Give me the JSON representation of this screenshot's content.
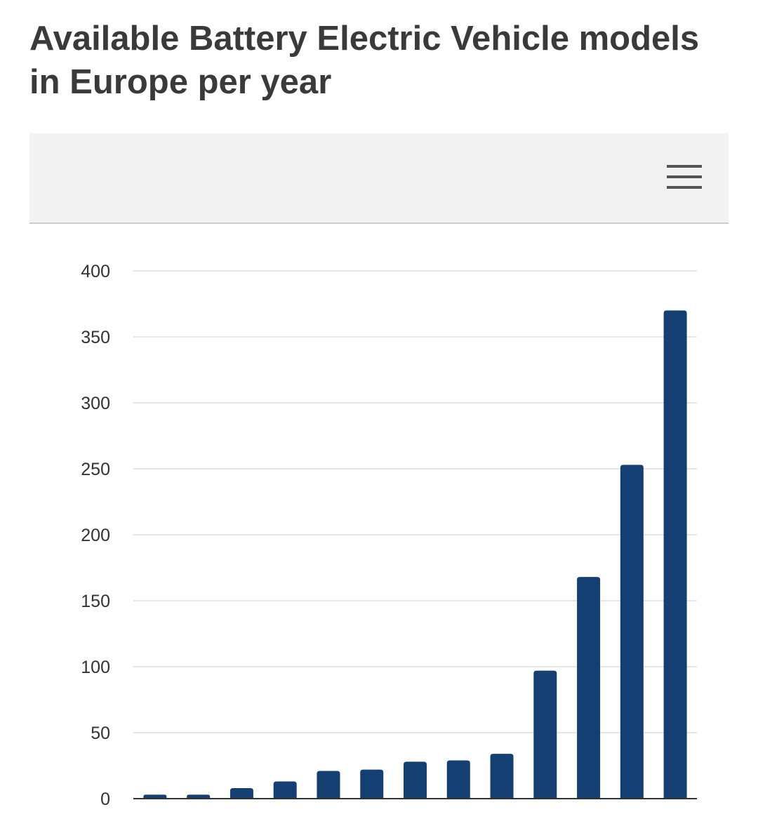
{
  "title": "Available Battery Electric Vehicle models in Europe per year",
  "toolbar": {
    "menu_icon": "hamburger-menu-icon"
  },
  "colors": {
    "bar": "#143f72",
    "grid": "#e6e6e6",
    "axis": "#333333",
    "toolbar_bg": "#f2f2f2",
    "title": "#3a3a3a"
  },
  "chart_data": {
    "type": "bar",
    "title": "Available Battery Electric Vehicle models in Europe per year",
    "xlabel": "",
    "ylabel": "",
    "categories": [
      "",
      "",
      "",
      "",
      "",
      "",
      "",
      "",
      "",
      "",
      "",
      "",
      ""
    ],
    "values": [
      3,
      3,
      8,
      13,
      21,
      22,
      28,
      29,
      34,
      97,
      168,
      253,
      370
    ],
    "ylim": [
      0,
      400
    ],
    "yticks": [
      0,
      50,
      100,
      150,
      200,
      250,
      300,
      350,
      400
    ],
    "ytick_labels": [
      "0",
      "50",
      "100",
      "150",
      "200",
      "250",
      "300",
      "350",
      "400"
    ],
    "grid": true,
    "legend": "none"
  }
}
